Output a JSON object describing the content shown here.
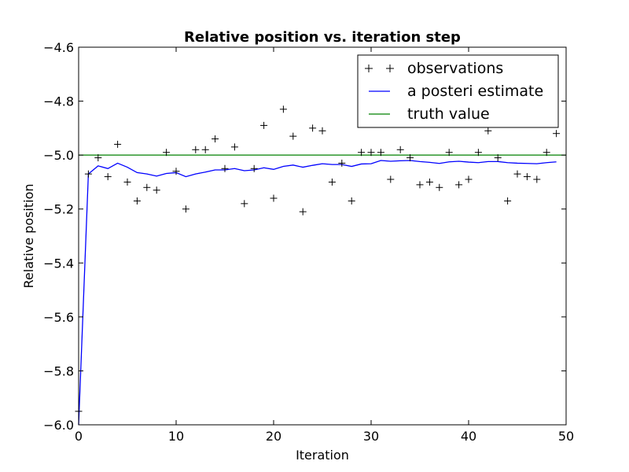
{
  "chart_data": {
    "type": "line",
    "title": "Relative position vs. iteration step",
    "xlabel": "Iteration",
    "ylabel": "Relative position",
    "xlim": [
      0,
      50
    ],
    "ylim": [
      -6.0,
      -4.6
    ],
    "xticks": [
      0,
      10,
      20,
      30,
      40,
      50
    ],
    "xtick_labels": [
      "0",
      "10",
      "20",
      "30",
      "40",
      "50"
    ],
    "yticks": [
      -6.0,
      -5.8,
      -5.6,
      -5.4,
      -5.2,
      -5.0,
      -4.8,
      -4.6
    ],
    "ytick_labels": [
      "−6.0",
      "−5.8",
      "−5.6",
      "−5.4",
      "−5.2",
      "−5.0",
      "−4.8",
      "−4.6"
    ],
    "grid": false,
    "legend_position": "top-right",
    "series": [
      {
        "name": "observations",
        "kind": "scatter",
        "marker": "+",
        "color": "#000000",
        "x": [
          0,
          1,
          2,
          3,
          4,
          5,
          6,
          7,
          8,
          9,
          10,
          11,
          12,
          13,
          14,
          15,
          16,
          17,
          18,
          19,
          20,
          21,
          22,
          23,
          24,
          25,
          26,
          27,
          28,
          29,
          30,
          31,
          32,
          33,
          34,
          35,
          36,
          37,
          38,
          39,
          40,
          41,
          42,
          43,
          44,
          45,
          46,
          47,
          48,
          49
        ],
        "y": [
          -5.95,
          -5.07,
          -5.01,
          -5.08,
          -4.96,
          -5.1,
          -5.17,
          -5.12,
          -5.13,
          -4.99,
          -5.06,
          -5.2,
          -4.98,
          -4.98,
          -4.94,
          -5.05,
          -4.97,
          -5.18,
          -5.05,
          -4.89,
          -5.16,
          -4.83,
          -4.93,
          -5.21,
          -4.9,
          -4.91,
          -5.1,
          -5.03,
          -5.17,
          -4.99,
          -4.99,
          -4.99,
          -5.09,
          -4.98,
          -5.01,
          -5.11,
          -5.1,
          -5.12,
          -4.99,
          -5.11,
          -5.09,
          -4.99,
          -4.91,
          -5.01,
          -5.17,
          -5.07,
          -5.08,
          -5.09,
          -4.99,
          -4.92
        ]
      },
      {
        "name": "a posteri estimate",
        "kind": "line",
        "color": "#0000ff",
        "x": [
          0,
          1,
          2,
          3,
          4,
          5,
          6,
          7,
          8,
          9,
          10,
          11,
          12,
          13,
          14,
          15,
          16,
          17,
          18,
          19,
          20,
          21,
          22,
          23,
          24,
          25,
          26,
          27,
          28,
          29,
          30,
          31,
          32,
          33,
          34,
          35,
          36,
          37,
          38,
          39,
          40,
          41,
          42,
          43,
          44,
          45,
          46,
          47,
          48,
          49
        ],
        "y": [
          -6.0,
          -5.07,
          -5.04,
          -5.05,
          -5.03,
          -5.045,
          -5.065,
          -5.07,
          -5.078,
          -5.068,
          -5.065,
          -5.08,
          -5.07,
          -5.063,
          -5.055,
          -5.055,
          -5.05,
          -5.058,
          -5.055,
          -5.047,
          -5.053,
          -5.042,
          -5.037,
          -5.045,
          -5.038,
          -5.032,
          -5.035,
          -5.035,
          -5.042,
          -5.033,
          -5.032,
          -5.02,
          -5.023,
          -5.021,
          -5.02,
          -5.024,
          -5.027,
          -5.031,
          -5.025,
          -5.023,
          -5.026,
          -5.028,
          -5.024,
          -5.024,
          -5.028,
          -5.03,
          -5.031,
          -5.032,
          -5.028,
          -5.025
        ]
      },
      {
        "name": "truth value",
        "kind": "line",
        "color": "#008000",
        "x": [
          0,
          50
        ],
        "y": [
          -5.0,
          -5.0
        ]
      }
    ]
  }
}
